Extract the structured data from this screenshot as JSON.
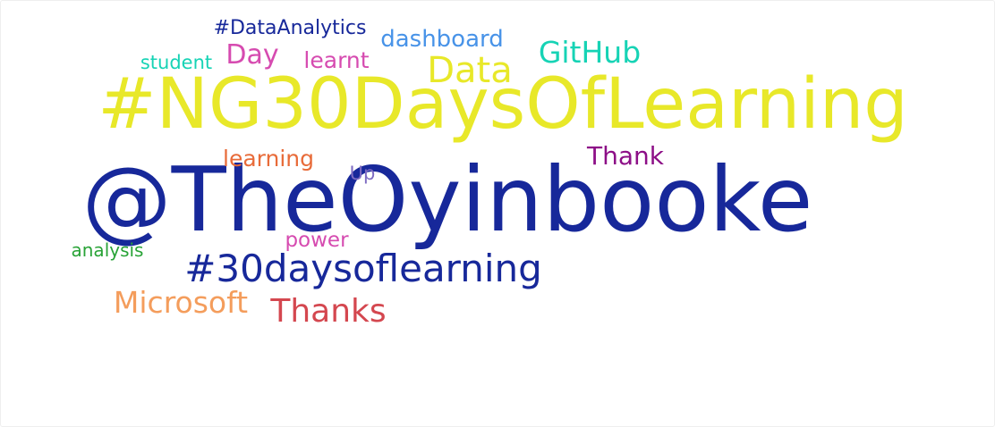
{
  "chart_data": {
    "type": "wordcloud",
    "words": [
      {
        "text": "@TheOyinbooke",
        "color": "#17289a"
      },
      {
        "text": "#NG30DaysOfLearning",
        "color": "#e8e829"
      },
      {
        "text": "#30daysoflearning",
        "color": "#17289a"
      },
      {
        "text": "Data",
        "color": "#e8e829"
      },
      {
        "text": "Thanks",
        "color": "#d4474f"
      },
      {
        "text": "Microsoft",
        "color": "#f49d5c"
      },
      {
        "text": "GitHub",
        "color": "#16d3b5"
      },
      {
        "text": "dashboard",
        "color": "#4893e8"
      },
      {
        "text": "Day",
        "color": "#d64bb0"
      },
      {
        "text": "Thank",
        "color": "#8d0f87"
      },
      {
        "text": "learning",
        "color": "#e86b39"
      },
      {
        "text": "learnt",
        "color": "#d64bb0"
      },
      {
        "text": "#DataAnalytics",
        "color": "#17289a"
      },
      {
        "text": "power",
        "color": "#d64bb0"
      },
      {
        "text": "student",
        "color": "#16d3b5"
      },
      {
        "text": "analysis",
        "color": "#29a337"
      },
      {
        "text": "Up",
        "color": "#7e6bc2"
      }
    ]
  }
}
